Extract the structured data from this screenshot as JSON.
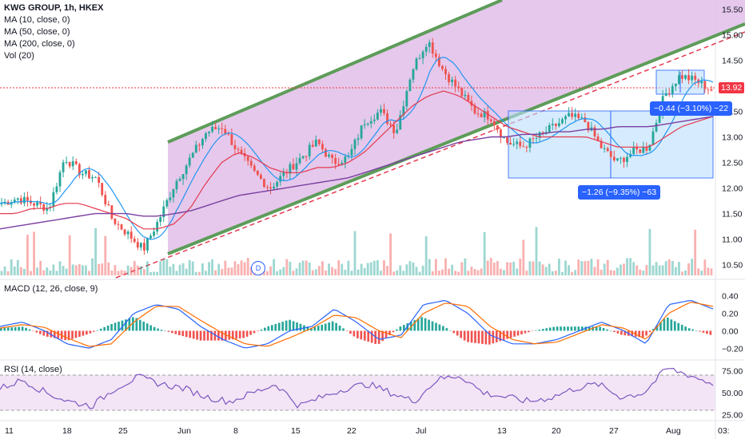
{
  "legend": {
    "title": "KWG GROUP, 1h, HKEX",
    "ma10": "MA (10, close, 0)",
    "ma50": "MA (50, close, 0)",
    "ma200": "MA (200, close, 0)",
    "vol": "Vol (20)"
  },
  "price_axis": [
    "15.50",
    "15.00",
    "14.50",
    "14.00",
    "13.50",
    "13.00",
    "12.50",
    "12.00",
    "11.50",
    "11.00",
    "10.50"
  ],
  "last_price": "13.92",
  "macd_legend": "MACD (12, 26, close, 9)",
  "macd_axis": [
    "0.40",
    "0.20",
    "0.00",
    "−0.20"
  ],
  "rsi_legend": "RSI (14, close)",
  "rsi_axis": [
    "75.00",
    "50.00",
    "25.00"
  ],
  "time_axis": [
    "11",
    "18",
    "25",
    "Jun",
    "8",
    "15",
    "22",
    "Jul",
    "13",
    "20",
    "27",
    "Aug",
    "03:"
  ],
  "measure_1": "−0.44 (−3.10%) −22",
  "measure_2": "−1.26 (−9.35%) −63",
  "dividend_mark": "D",
  "colors": {
    "candle_up": "#26a69a",
    "candle_down": "#ef5350",
    "channel_fill": "#e1bee7",
    "channel_line": "#5d9c59",
    "ma10": "#2196f3",
    "ma50": "#e53950",
    "ma200": "#7b3fa0",
    "macd": "#2962ff",
    "signal": "#ff6d00",
    "rsi": "#7e57c2"
  },
  "chart_data": {
    "type": "line",
    "title": "KWG GROUP, 1h, HKEX",
    "ylim": [
      10.4,
      15.6
    ],
    "x_ticks": [
      "11",
      "18",
      "25",
      "Jun",
      "8",
      "15",
      "22",
      "Jul",
      "13",
      "20",
      "27",
      "Aug"
    ],
    "series": [
      {
        "name": "price",
        "values": [
          11.7,
          11.8,
          11.7,
          11.6,
          12.6,
          12.3,
          12.2,
          11.4,
          11.1,
          10.8,
          11.4,
          12.1,
          12.6,
          13.1,
          13.2,
          12.7,
          12.3,
          12.0,
          12.3,
          12.6,
          12.9,
          12.5,
          12.6,
          13.3,
          13.5,
          13.1,
          14.3,
          14.9,
          14.3,
          13.9,
          13.5,
          13.4,
          12.9,
          12.8,
          13.0,
          13.2,
          13.4,
          13.3,
          12.8,
          12.5,
          12.7,
          12.8,
          13.8,
          14.2,
          14.1,
          13.92
        ]
      },
      {
        "name": "MA (50, close, 0)",
        "values": [
          11.5,
          11.5,
          11.6,
          11.6,
          11.7,
          11.7,
          11.6,
          11.5,
          11.4,
          11.2,
          11.2,
          11.3,
          11.6,
          12.1,
          12.5,
          12.7,
          12.6,
          12.4,
          12.3,
          12.3,
          12.4,
          12.4,
          12.5,
          12.7,
          13.0,
          13.3,
          13.6,
          13.8,
          13.9,
          13.8,
          13.6,
          13.4,
          13.2,
          13.1,
          13.0,
          13.0,
          13.0,
          13.0,
          12.9,
          12.8,
          12.8,
          12.8,
          13.0,
          13.2,
          13.3,
          13.4
        ]
      },
      {
        "name": "MA (200, close, 0)",
        "values": [
          11.2,
          11.25,
          11.3,
          11.35,
          11.4,
          11.45,
          11.5,
          11.5,
          11.5,
          11.45,
          11.45,
          11.5,
          11.55,
          11.65,
          11.75,
          11.85,
          11.9,
          11.95,
          12.0,
          12.05,
          12.1,
          12.15,
          12.2,
          12.3,
          12.4,
          12.5,
          12.6,
          12.7,
          12.8,
          12.9,
          12.95,
          13.0,
          13.0,
          13.05,
          13.05,
          13.1,
          13.1,
          13.15,
          13.15,
          13.2,
          13.2,
          13.2,
          13.25,
          13.3,
          13.35,
          13.4
        ]
      }
    ],
    "macd": {
      "ylim": [
        -0.28,
        0.48
      ],
      "macd": [
        0.05,
        0.1,
        0.0,
        -0.15,
        -0.2,
        -0.1,
        0.2,
        0.3,
        0.25,
        0.05,
        -0.1,
        -0.2,
        -0.15,
        0.0,
        0.05,
        0.25,
        0.1,
        -0.1,
        -0.05,
        0.3,
        0.35,
        0.2,
        -0.05,
        -0.15,
        -0.15,
        -0.1,
        0.0,
        0.1,
        0.0,
        -0.15,
        0.3,
        0.35,
        0.25
      ],
      "signal": [
        0.03,
        0.07,
        0.04,
        -0.08,
        -0.18,
        -0.15,
        0.1,
        0.28,
        0.28,
        0.12,
        -0.03,
        -0.15,
        -0.18,
        -0.08,
        0.03,
        0.18,
        0.15,
        0.0,
        -0.08,
        0.2,
        0.32,
        0.28,
        0.05,
        -0.1,
        -0.15,
        -0.13,
        -0.03,
        0.07,
        0.03,
        -0.1,
        0.2,
        0.33,
        0.28
      ]
    },
    "rsi": {
      "ylim": [
        20,
        82
      ],
      "values": [
        55,
        65,
        50,
        40,
        35,
        55,
        68,
        60,
        55,
        45,
        40,
        50,
        60,
        35,
        45,
        55,
        60,
        50,
        40,
        65,
        70,
        50,
        45,
        40,
        45,
        55,
        60,
        45,
        50,
        78,
        70,
        60
      ]
    }
  }
}
